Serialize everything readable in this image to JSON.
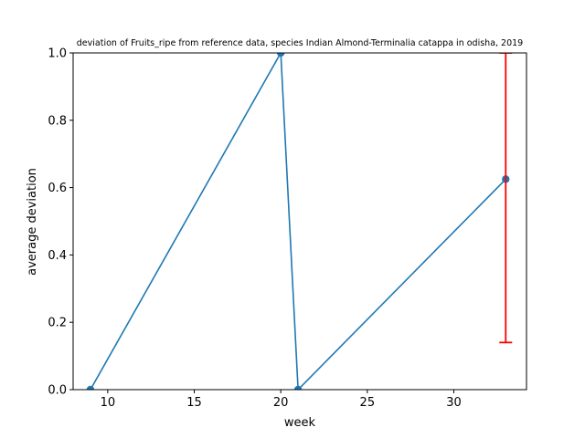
{
  "chart_data": {
    "type": "line",
    "title": "deviation of Fruits_ripe from reference data, species Indian Almond-Terminalia catappa in odisha, 2019",
    "xlabel": "week",
    "ylabel": "average deviation",
    "xlim": [
      8,
      34.2
    ],
    "ylim": [
      0,
      1.0
    ],
    "xticks": [
      10,
      15,
      20,
      25,
      30
    ],
    "yticks": [
      0.0,
      0.2,
      0.4,
      0.6,
      0.8,
      1.0
    ],
    "xtick_labels": [
      "10",
      "15",
      "20",
      "25",
      "30"
    ],
    "ytick_labels": [
      "0.0",
      "0.2",
      "0.4",
      "0.6",
      "0.8",
      "1.0"
    ],
    "grid": false,
    "series": [
      {
        "x": [
          9,
          20,
          21,
          33
        ],
        "y": [
          0.0,
          1.0,
          0.0,
          0.625
        ],
        "color": "#1f77b4",
        "marker": "circle"
      }
    ],
    "error_bars": [
      {
        "x": 33,
        "y": 0.625,
        "lower": 0.14,
        "upper": 1.0,
        "color": "#ff0000"
      }
    ]
  }
}
